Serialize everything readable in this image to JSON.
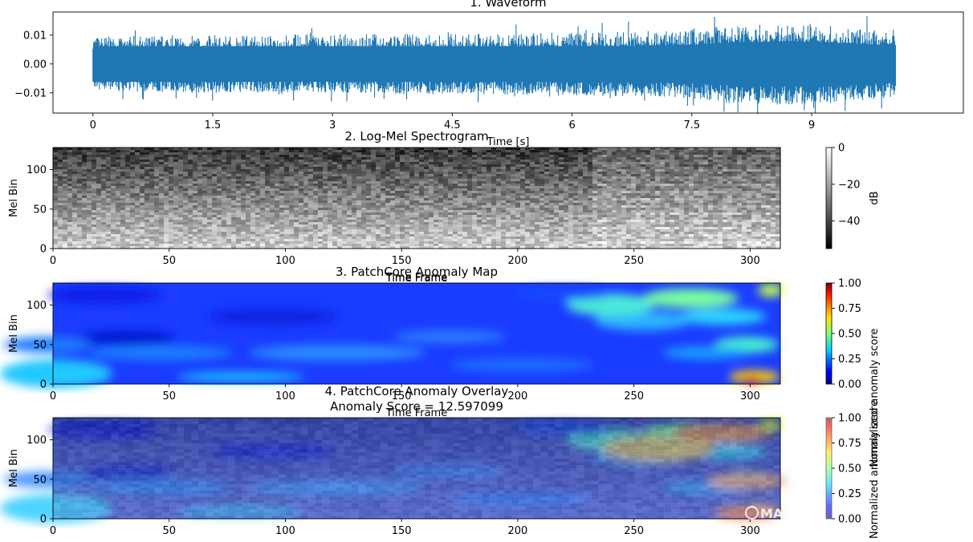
{
  "chart_data": [
    {
      "type": "line",
      "title": "1. Waveform",
      "xlabel": "Time [s]",
      "ylabel": "",
      "xlim": [
        -0.5,
        10.9
      ],
      "ylim": [
        -0.017,
        0.018
      ],
      "xticks": [
        0,
        1.5,
        3,
        4.5,
        6,
        7.5,
        9
      ],
      "xtick_labels": [
        "0",
        "1.5",
        "3",
        "4.5",
        "6",
        "7.5",
        "9"
      ],
      "yticks": [
        0.01,
        0.0,
        -0.01
      ],
      "ytick_labels": [
        "0.01",
        "0.00",
        "−0.01"
      ],
      "duration_s": 10.05,
      "envelope": {
        "t": [
          0,
          1,
          2,
          3,
          4,
          5,
          6,
          7,
          7.5,
          8,
          8.5,
          9,
          9.5,
          10.05
        ],
        "max": [
          0.0095,
          0.01,
          0.01,
          0.0105,
          0.0105,
          0.0105,
          0.011,
          0.0115,
          0.012,
          0.0135,
          0.014,
          0.014,
          0.013,
          0.0115
        ],
        "min": [
          -0.009,
          -0.01,
          -0.01,
          -0.01,
          -0.0105,
          -0.0105,
          -0.011,
          -0.0115,
          -0.012,
          -0.0135,
          -0.014,
          -0.014,
          -0.013,
          -0.0115
        ]
      },
      "color": "#1f77b4"
    },
    {
      "type": "heatmap",
      "title": "2. Log-Mel Spectrogram",
      "xlabel": "Time Frame",
      "ylabel": "Mel Bin",
      "xlim": [
        0,
        313
      ],
      "ylim": [
        0,
        128
      ],
      "xticks": [
        0,
        50,
        100,
        150,
        200,
        250,
        300
      ],
      "yticks": [
        0,
        50,
        100
      ],
      "colormap": "gray",
      "colorbar": {
        "label": "dB",
        "ticks": [
          0,
          -20,
          -40
        ],
        "tick_labels": [
          "0",
          "−20",
          "−40"
        ],
        "range": [
          -55,
          0
        ]
      }
    },
    {
      "type": "heatmap",
      "title": "3. PatchCore Anomaly Map",
      "xlabel": "Time Frame",
      "ylabel": "Mel Bin",
      "xlim": [
        0,
        313
      ],
      "ylim": [
        0,
        128
      ],
      "xticks": [
        0,
        50,
        100,
        150,
        200,
        250,
        300
      ],
      "yticks": [
        0,
        50,
        100
      ],
      "colormap": "jet",
      "colorbar": {
        "label": "Normalized anomaly score",
        "ticks": [
          0,
          0.25,
          0.5,
          0.75,
          1.0
        ],
        "tick_labels": [
          "0.00",
          "0.25",
          "0.50",
          "0.75",
          "1.00"
        ],
        "range": [
          0,
          1
        ]
      }
    },
    {
      "type": "heatmap",
      "title": "4. PatchCore Anomaly Overlay",
      "subtitle": "Anomaly Score = 12.597099",
      "xlabel": "Time Frame",
      "ylabel": "Mel Bin",
      "xlim": [
        0,
        313
      ],
      "ylim": [
        0,
        128
      ],
      "xticks": [
        0,
        50,
        100,
        150,
        200,
        250,
        300
      ],
      "yticks": [
        0,
        50,
        100
      ],
      "colormap": "jet (alpha overlay)",
      "colorbar": {
        "label": "Normalized anomaly score",
        "ticks": [
          0,
          0.25,
          0.5,
          0.75,
          1.0
        ],
        "tick_labels": [
          "0.00",
          "0.25",
          "0.50",
          "0.75",
          "1.00"
        ],
        "range": [
          0,
          1
        ]
      }
    }
  ],
  "watermark": {
    "text": "MA"
  }
}
